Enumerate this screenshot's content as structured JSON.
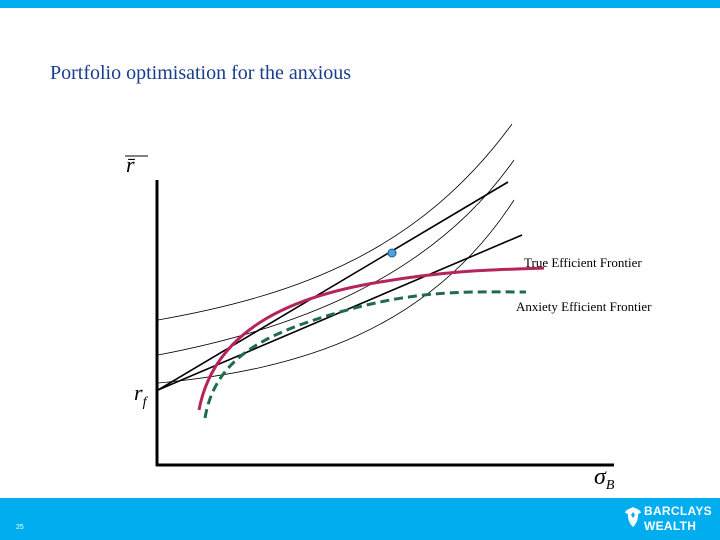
{
  "slide": {
    "title": "Portfolio optimisation for the anxious",
    "page_number": "25"
  },
  "diagram": {
    "y_axis_label": "r̄",
    "x_axis_label": "σ",
    "x_axis_subscript": "B",
    "rf_label": "r",
    "rf_subscript": "f",
    "true_frontier_label": "True Efficient Frontier",
    "anxiety_frontier_label": "Anxiety Efficient Frontier"
  },
  "brand": {
    "line1": "BARCLAYS",
    "line2": "WEALTH"
  },
  "colors": {
    "bar": "#00aeef",
    "title": "#1a3c8c",
    "true_frontier": "#b5245c",
    "anxiety_frontier": "#1f6b4e",
    "tangency_point": "#4aa3df"
  }
}
